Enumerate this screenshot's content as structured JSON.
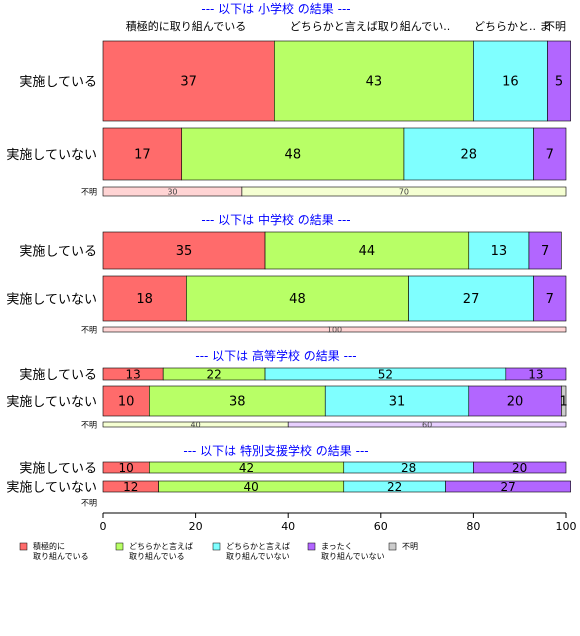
{
  "chart_data": {
    "type": "bar",
    "orientation": "horizontal",
    "stacked": true,
    "percent": true,
    "xlim": [
      0,
      100
    ],
    "xticks": [
      0,
      20,
      40,
      60,
      80,
      100
    ],
    "header_labels": [
      "積極的に取り組んでいる",
      "どちらかと言えば取り組んでい..",
      "どちらかと..",
      "ま",
      "不明"
    ],
    "legend": [
      {
        "label": "積極的に\n取り組んでいる",
        "color": "#FF6B6B"
      },
      {
        "label": "どちらかと言えば\n取り組んでいる",
        "color": "#B8FF66"
      },
      {
        "label": "どちらかと言えば\n取り組んでいない",
        "color": "#7FFFFF"
      },
      {
        "label": "まったく\n取り組んでいない",
        "color": "#B266FF"
      },
      {
        "label": "不明",
        "color": "#CCCCCC"
      }
    ],
    "legend_position": "bottom",
    "unknown_colors": [
      "#FFD4D4",
      "#F5FFD2",
      "#D4FFFF",
      "#E8D0FF"
    ],
    "panels": [
      {
        "title": "--- 以下は 小学校 の結果 ---",
        "rows": [
          {
            "label": "実施している",
            "values": [
              37,
              43,
              16,
              5
            ],
            "total": 100,
            "main": true
          },
          {
            "label": "実施していない",
            "values": [
              17,
              48,
              28,
              7
            ],
            "total": 100,
            "main": true
          },
          {
            "label": "不明",
            "values": [
              30,
              70,
              0,
              0
            ],
            "total": 100,
            "main": false
          }
        ]
      },
      {
        "title": "--- 以下は 中学校 の結果 ---",
        "rows": [
          {
            "label": "実施している",
            "values": [
              35,
              44,
              13,
              7
            ],
            "total": 99,
            "main": true
          },
          {
            "label": "実施していない",
            "values": [
              18,
              48,
              27,
              7
            ],
            "total": 100,
            "main": true
          },
          {
            "label": "不明",
            "values": [
              100,
              0,
              0,
              0
            ],
            "total": 100,
            "main": false
          }
        ]
      },
      {
        "title": "--- 以下は 高等学校 の結果 ---",
        "rows": [
          {
            "label": "実施している",
            "values": [
              13,
              22,
              52,
              13
            ],
            "total": 100,
            "main": true
          },
          {
            "label": "実施していない",
            "values": [
              10,
              38,
              31,
              20,
              1
            ],
            "total": 100,
            "main": true
          },
          {
            "label": "不明",
            "values": [
              0,
              40,
              0,
              60
            ],
            "total": 100,
            "main": false
          }
        ]
      },
      {
        "title": "--- 以下は 特別支援学校 の結果 ---",
        "rows": [
          {
            "label": "実施している",
            "values": [
              10,
              42,
              28,
              20
            ],
            "total": 100,
            "main": true
          },
          {
            "label": "実施していない",
            "values": [
              12,
              40,
              22,
              27
            ],
            "total": 101,
            "main": true
          },
          {
            "label": "不明",
            "values": [],
            "total": 0,
            "main": false
          }
        ]
      }
    ]
  }
}
